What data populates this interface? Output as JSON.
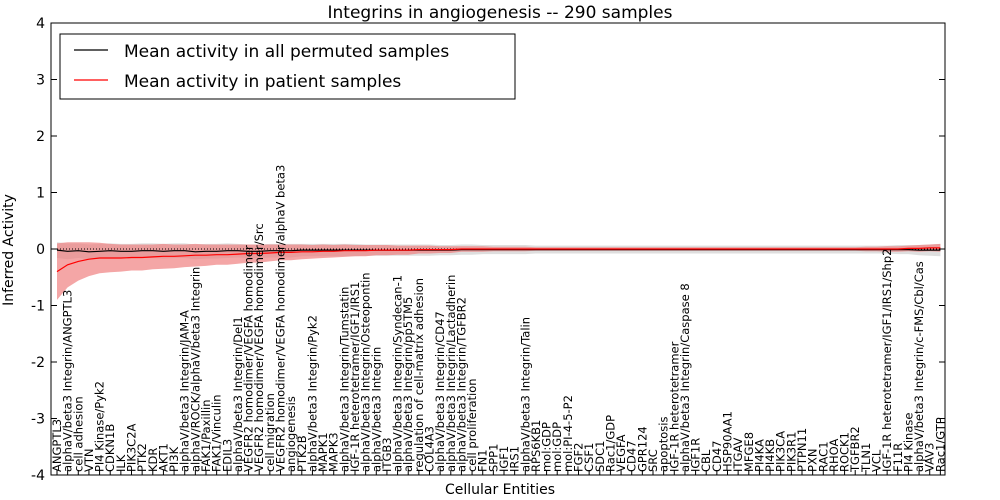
{
  "chart_data": {
    "type": "line",
    "title": "Integrins in angiogenesis -- 290 samples",
    "xlabel": "Cellular Entities",
    "ylabel": "Inferred Activity",
    "ylim": [
      -4,
      4
    ],
    "yticks": [
      -4,
      -3,
      -2,
      -1,
      0,
      1,
      2,
      3,
      4
    ],
    "grid": false,
    "legend_position": "top-left",
    "categories": [
      "ANGPTL3",
      "alphaV/beta3 Integrin/ANGPTL3",
      "cell adhesion",
      "VTN",
      "PI4 Kinase/Pyk2",
      "CDKN1B",
      "ILK",
      "PIK3C2A",
      "PTK2",
      "KDR",
      "AKT1",
      "PI3K",
      "alphaV/beta3 Integrin/JAM-A",
      "alphaV/ROCK/alphaV/beta3 Integrin",
      "FAK1/Paxillin",
      "FAK1/Vinculin",
      "EDIL3",
      "alphaV/beta3 Integrin/Del1",
      "VEGFR2 homodimer/VEGFA homodimer",
      "VEGFR2 homodimer/VEGFA homodimer/Src",
      "cell migration",
      "VEGFR2 homodimer/VEGFA homodimer/alphaV beta3",
      "angiogenesis",
      "PTK2B",
      "alphaV/beta3 Integrin/Pyk2",
      "MAPK1",
      "MAPK3",
      "alphaV/beta3 Integrin/Tumstatin",
      "IGF-1R heterotetramer/IGF1/IRS1",
      "alphaV/beta3 Integrin/Osteopontin",
      "alphaV/beta3 Integrin",
      "ITGB3",
      "alphaV/beta3 Integrin/Syndecan-1",
      "alphaV/beta3 Integrin/pp5TM5",
      "regulation of cell-matrix adhesion",
      "COL4A3",
      "alphaV/beta3 Integrin/CD47",
      "alphaV/beta3 Integrin/Lactadherin",
      "alphaV/beta3 Integrin/TGFBR2",
      "cell proliferation",
      "FN1",
      "SPP1",
      "IGF1",
      "IRS1",
      "alphaV/beta3 Integrin/Talin",
      "RPS6KB1",
      "mol:GDP",
      "mol:GDP",
      "mol:PI-4-5-P2",
      "FGF2",
      "CSF1",
      "SDC1",
      "Rac1/GDP",
      "VEGFA",
      "CD47",
      "GPR124",
      "SRC",
      "apoptosis",
      "IGF-1R heterotetramer",
      "alphaV/beta3 Integrin/Caspase 8",
      "IGF1R",
      "CBL",
      "CD47",
      "HSP90AA1",
      "ITGAV",
      "MFGE8",
      "PI4KA",
      "PI4KB",
      "PIK3CA",
      "PIK3R1",
      "PTPN11",
      "PXN",
      "RAC1",
      "RHOA",
      "ROCK1",
      "TGFBR2",
      "TLN1",
      "VCL",
      "IGF-1R heterotetramer/IGF1/IRS1/Shp2",
      "F11R",
      "PI4 Kinase",
      "alphaV/beta3 Integrin/c-FMS/Cbl/Cas",
      "VAV3",
      "Rac1/GTP"
    ],
    "series": [
      {
        "name": "Mean activity in all permuted samples",
        "color": "#000000",
        "band_color": "#c8c8c8",
        "values": [
          -0.02,
          -0.04,
          -0.03,
          -0.05,
          -0.04,
          -0.03,
          -0.04,
          -0.04,
          -0.03,
          -0.03,
          -0.04,
          -0.03,
          -0.03,
          -0.05,
          -0.04,
          -0.04,
          -0.03,
          -0.03,
          -0.04,
          -0.04,
          -0.03,
          -0.03,
          -0.03,
          -0.02,
          -0.02,
          -0.02,
          -0.02,
          -0.02,
          -0.02,
          -0.02,
          -0.02,
          -0.02,
          -0.02,
          -0.02,
          -0.02,
          -0.02,
          -0.02,
          -0.02,
          -0.01,
          -0.01,
          -0.01,
          -0.01,
          -0.01,
          -0.01,
          -0.01,
          -0.01,
          -0.01,
          -0.01,
          -0.01,
          -0.01,
          -0.01,
          -0.01,
          -0.01,
          -0.01,
          -0.01,
          -0.01,
          -0.01,
          -0.01,
          -0.01,
          -0.01,
          -0.01,
          -0.01,
          -0.01,
          -0.01,
          -0.01,
          -0.01,
          -0.01,
          -0.01,
          -0.01,
          -0.01,
          -0.01,
          -0.01,
          -0.01,
          -0.01,
          -0.01,
          -0.01,
          -0.01,
          -0.01,
          -0.01,
          -0.01,
          -0.01,
          -0.02,
          -0.02,
          -0.02
        ],
        "band": [
          0.14,
          0.14,
          0.13,
          0.13,
          0.13,
          0.13,
          0.13,
          0.13,
          0.13,
          0.13,
          0.13,
          0.13,
          0.13,
          0.13,
          0.13,
          0.13,
          0.13,
          0.12,
          0.12,
          0.12,
          0.12,
          0.12,
          0.12,
          0.11,
          0.11,
          0.11,
          0.11,
          0.11,
          0.11,
          0.1,
          0.1,
          0.1,
          0.1,
          0.1,
          0.1,
          0.1,
          0.09,
          0.09,
          0.09,
          0.09,
          0.08,
          0.08,
          0.08,
          0.08,
          0.08,
          0.07,
          0.07,
          0.07,
          0.07,
          0.07,
          0.07,
          0.07,
          0.07,
          0.07,
          0.07,
          0.07,
          0.07,
          0.07,
          0.07,
          0.07,
          0.07,
          0.07,
          0.07,
          0.07,
          0.07,
          0.07,
          0.07,
          0.07,
          0.07,
          0.07,
          0.07,
          0.07,
          0.07,
          0.07,
          0.07,
          0.07,
          0.07,
          0.07,
          0.07,
          0.08,
          0.08,
          0.09,
          0.1,
          0.11
        ]
      },
      {
        "name": "Mean activity in patient samples",
        "color": "#ff0000",
        "band_color": "#f08080",
        "values": [
          -0.4,
          -0.28,
          -0.22,
          -0.18,
          -0.16,
          -0.16,
          -0.16,
          -0.15,
          -0.15,
          -0.14,
          -0.13,
          -0.13,
          -0.12,
          -0.11,
          -0.11,
          -0.1,
          -0.1,
          -0.09,
          -0.08,
          -0.08,
          -0.07,
          -0.06,
          -0.06,
          -0.05,
          -0.05,
          -0.04,
          -0.04,
          -0.03,
          -0.03,
          -0.03,
          -0.02,
          -0.02,
          -0.02,
          -0.02,
          -0.01,
          -0.01,
          -0.01,
          -0.01,
          0.0,
          0.0,
          0.0,
          0.0,
          0.0,
          0.0,
          0.0,
          0.0,
          0.0,
          0.0,
          0.0,
          0.0,
          0.0,
          0.0,
          0.0,
          0.0,
          0.0,
          0.0,
          0.0,
          0.0,
          0.0,
          0.0,
          0.0,
          0.0,
          0.0,
          0.0,
          0.0,
          0.0,
          0.0,
          0.0,
          0.0,
          0.0,
          0.0,
          0.0,
          0.0,
          0.0,
          0.0,
          0.0,
          0.0,
          0.0,
          0.0,
          0.0,
          0.01,
          0.01,
          0.02,
          0.02
        ],
        "band": [
          0.5,
          0.4,
          0.34,
          0.3,
          0.27,
          0.25,
          0.24,
          0.23,
          0.23,
          0.22,
          0.22,
          0.21,
          0.2,
          0.2,
          0.19,
          0.18,
          0.18,
          0.17,
          0.16,
          0.16,
          0.15,
          0.14,
          0.14,
          0.13,
          0.12,
          0.12,
          0.11,
          0.11,
          0.1,
          0.1,
          0.09,
          0.09,
          0.08,
          0.08,
          0.07,
          0.07,
          0.06,
          0.06,
          0.05,
          0.05,
          0.05,
          0.04,
          0.04,
          0.04,
          0.04,
          0.03,
          0.03,
          0.03,
          0.03,
          0.03,
          0.03,
          0.03,
          0.03,
          0.03,
          0.03,
          0.03,
          0.03,
          0.03,
          0.03,
          0.03,
          0.03,
          0.03,
          0.03,
          0.03,
          0.03,
          0.03,
          0.03,
          0.03,
          0.03,
          0.03,
          0.03,
          0.03,
          0.03,
          0.03,
          0.03,
          0.03,
          0.04,
          0.04,
          0.05,
          0.05,
          0.05,
          0.06,
          0.06,
          0.07
        ]
      }
    ]
  }
}
